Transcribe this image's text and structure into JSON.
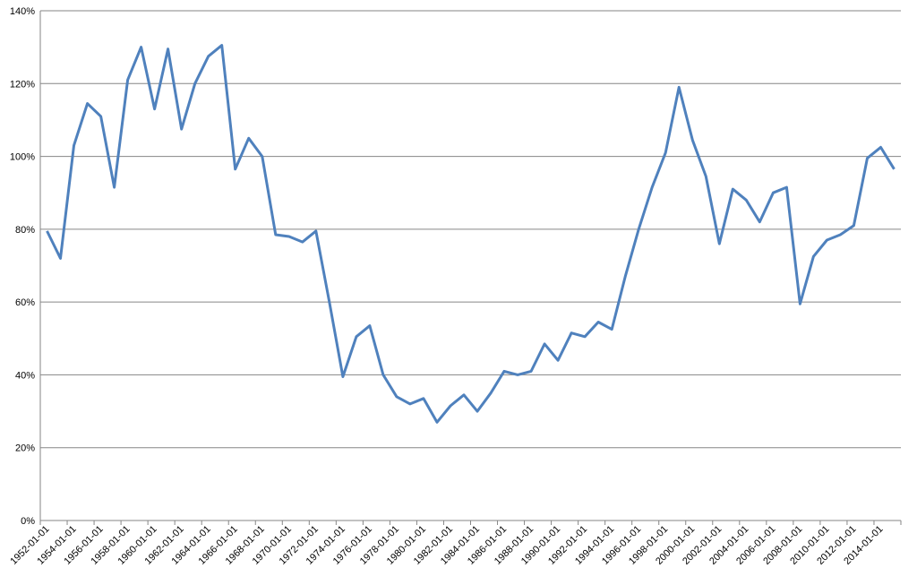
{
  "chart_data": {
    "type": "line",
    "categories": [
      "1952-01-01",
      null,
      "1954-01-01",
      null,
      "1956-01-01",
      null,
      "1958-01-01",
      null,
      "1960-01-01",
      null,
      "1962-01-01",
      null,
      "1964-01-01",
      null,
      "1966-01-01",
      null,
      "1968-01-01",
      null,
      "1970-01-01",
      null,
      "1972-01-01",
      null,
      "1974-01-01",
      null,
      "1976-01-01",
      null,
      "1978-01-01",
      null,
      "1980-01-01",
      null,
      "1982-01-01",
      null,
      "1984-01-01",
      null,
      "1986-01-01",
      null,
      "1988-01-01",
      null,
      "1990-01-01",
      null,
      "1992-01-01",
      null,
      "1994-01-01",
      null,
      "1996-01-01",
      null,
      "1998-01-01",
      null,
      "2000-01-01",
      null,
      "2002-01-01",
      null,
      "2004-01-01",
      null,
      "2006-01-01",
      null,
      "2008-01-01",
      null,
      "2010-01-01",
      null,
      "2012-01-01",
      null,
      "2014-01-01",
      null
    ],
    "values": [
      79.5,
      72,
      103,
      114.5,
      111,
      91.5,
      121,
      130,
      113,
      129.5,
      107.5,
      120,
      127.5,
      130.5,
      96.5,
      105,
      100,
      78.5,
      78,
      76.5,
      79.5,
      60,
      39.5,
      50.5,
      53.5,
      40,
      34,
      32,
      33.5,
      27,
      31.5,
      34.5,
      30,
      35,
      41,
      40,
      41,
      48.5,
      44,
      51.5,
      50.5,
      54.5,
      52.5,
      67,
      80,
      91.5,
      101,
      119,
      104.5,
      94.5,
      76,
      91,
      88,
      82,
      90,
      91.5,
      59.5,
      72.5,
      77,
      78.5,
      81,
      99.5,
      102.5,
      96.5
    ],
    "color": "#4f81bd",
    "ylim": [
      0,
      140
    ],
    "yticks": [
      {
        "value": 0,
        "label": "0%"
      },
      {
        "value": 20,
        "label": "20%"
      },
      {
        "value": 40,
        "label": "40%"
      },
      {
        "value": 60,
        "label": "60%"
      },
      {
        "value": 80,
        "label": "80%"
      },
      {
        "value": 100,
        "label": "100%"
      },
      {
        "value": 120,
        "label": "120%"
      },
      {
        "value": 140,
        "label": "140%"
      }
    ],
    "grid": true
  }
}
